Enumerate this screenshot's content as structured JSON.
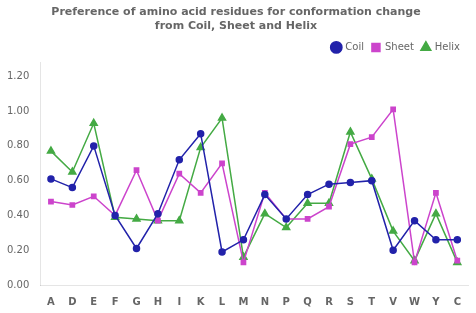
{
  "chart_data": {
    "type": "line",
    "title": "Preference of amino acid residues for conformation change\nfrom Coil, Sheet and Helix",
    "categories": [
      "A",
      "D",
      "E",
      "F",
      "G",
      "H",
      "I",
      "K",
      "L",
      "M",
      "N",
      "P",
      "Q",
      "R",
      "S",
      "T",
      "V",
      "W",
      "Y",
      "C"
    ],
    "series": [
      {
        "name": "Coil",
        "color": "#2222AA",
        "marker": "circle",
        "values": [
          0.61,
          0.56,
          0.8,
          0.4,
          0.21,
          0.41,
          0.72,
          0.87,
          0.19,
          0.26,
          0.52,
          0.38,
          0.52,
          0.58,
          0.59,
          0.6,
          0.2,
          0.37,
          0.26,
          0.26
        ]
      },
      {
        "name": "Sheet",
        "color": "#CC44CC",
        "marker": "square",
        "values": [
          0.48,
          0.46,
          0.51,
          0.4,
          0.66,
          0.37,
          0.64,
          0.53,
          0.7,
          0.13,
          0.53,
          0.38,
          0.38,
          0.45,
          0.81,
          0.85,
          1.01,
          0.13,
          0.53,
          0.14
        ]
      },
      {
        "name": "Helix",
        "color": "#44AA44",
        "marker": "triangle",
        "values": [
          0.77,
          0.65,
          0.93,
          0.39,
          0.38,
          0.37,
          0.37,
          0.79,
          0.96,
          0.16,
          0.41,
          0.33,
          0.47,
          0.47,
          0.88,
          0.61,
          0.31,
          0.14,
          0.41,
          0.13
        ]
      }
    ],
    "ylim": [
      0.0,
      1.28
    ],
    "yticks": [
      {
        "value": 0,
        "label": "0.00"
      },
      {
        "value": 0.2,
        "label": "0.20"
      },
      {
        "value": 0.4,
        "label": "0.40"
      },
      {
        "value": 0.6,
        "label": "0.60"
      },
      {
        "value": 0.8,
        "label": "0.80"
      },
      {
        "value": 1.0,
        "label": "1.00"
      },
      {
        "value": 1.2,
        "label": "1.20"
      }
    ],
    "grid": false,
    "legend": "upper right"
  }
}
